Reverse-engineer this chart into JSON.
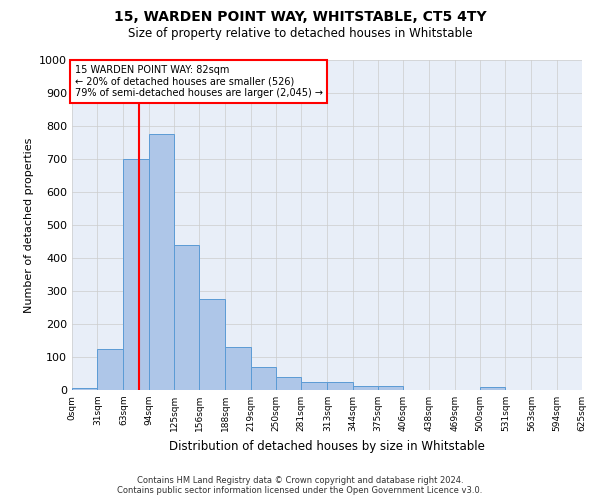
{
  "title": "15, WARDEN POINT WAY, WHITSTABLE, CT5 4TY",
  "subtitle": "Size of property relative to detached houses in Whitstable",
  "xlabel": "Distribution of detached houses by size in Whitstable",
  "ylabel": "Number of detached properties",
  "bar_values": [
    5,
    125,
    700,
    775,
    440,
    275,
    130,
    70,
    40,
    25,
    25,
    12,
    12,
    0,
    0,
    0,
    10,
    0,
    0,
    0
  ],
  "bin_edges": [
    0,
    31,
    63,
    94,
    125,
    156,
    188,
    219,
    250,
    281,
    313,
    344,
    375,
    406,
    438,
    469,
    500,
    531,
    563,
    594,
    625
  ],
  "tick_labels": [
    "0sqm",
    "31sqm",
    "63sqm",
    "94sqm",
    "125sqm",
    "156sqm",
    "188sqm",
    "219sqm",
    "250sqm",
    "281sqm",
    "313sqm",
    "344sqm",
    "375sqm",
    "406sqm",
    "438sqm",
    "469sqm",
    "500sqm",
    "531sqm",
    "563sqm",
    "594sqm",
    "625sqm"
  ],
  "bar_color": "#aec6e8",
  "bar_edge_color": "#5b9bd5",
  "vline_x": 82,
  "vline_color": "red",
  "ylim": [
    0,
    1000
  ],
  "yticks": [
    0,
    100,
    200,
    300,
    400,
    500,
    600,
    700,
    800,
    900,
    1000
  ],
  "annotation_box_text": "15 WARDEN POINT WAY: 82sqm\n← 20% of detached houses are smaller (526)\n79% of semi-detached houses are larger (2,045) →",
  "annotation_box_color": "red",
  "footer_line1": "Contains HM Land Registry data © Crown copyright and database right 2024.",
  "footer_line2": "Contains public sector information licensed under the Open Government Licence v3.0.",
  "grid_color": "#cccccc",
  "bg_color": "#ffffff",
  "plot_bg_color": "#e8eef8"
}
